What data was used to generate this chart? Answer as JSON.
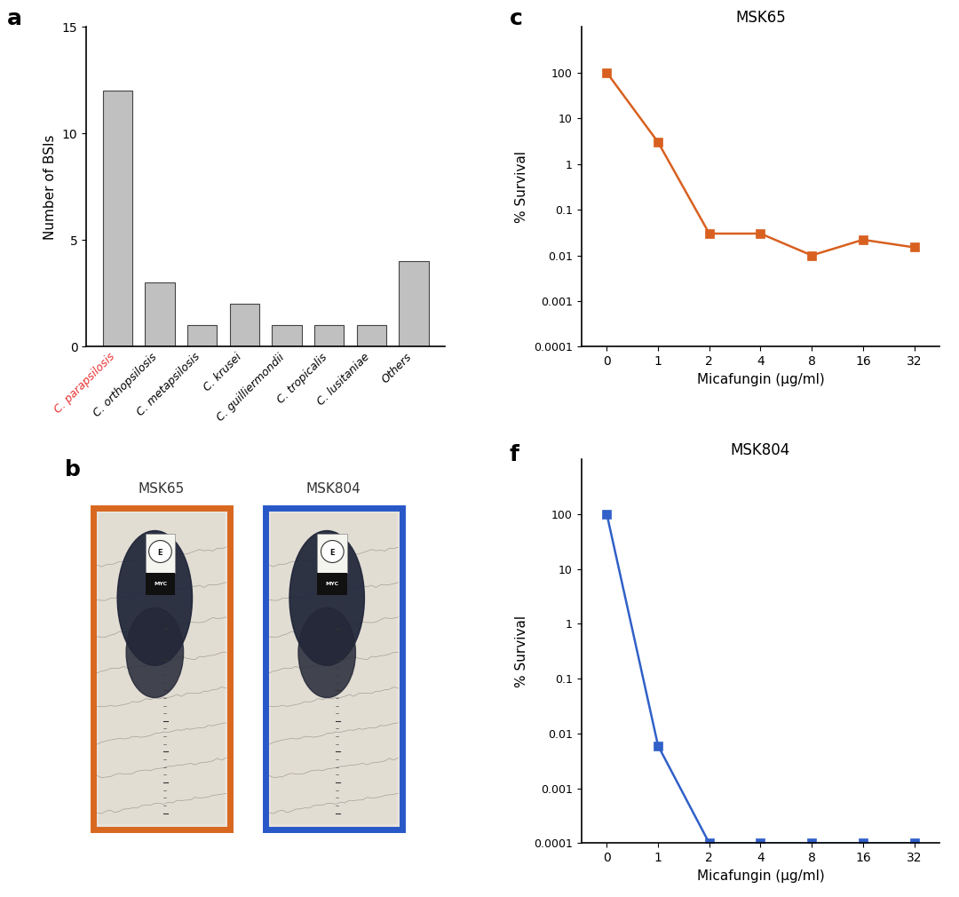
{
  "bar_categories": [
    "C. parapsilosis",
    "C. orthopsilosis",
    "C. metapsilosis",
    "C. krusei",
    "C. guilliermondii",
    "C. tropicalis",
    "C. lusitaniae",
    "Others"
  ],
  "bar_values": [
    12,
    3,
    1,
    2,
    1,
    1,
    1,
    4
  ],
  "bar_color": "#c0c0c0",
  "bar_edge_color": "#444444",
  "bar_first_label_color": "#e83030",
  "bar_ylabel": "Number of BSIs",
  "bar_ylim": [
    0,
    15
  ],
  "bar_yticks": [
    0,
    5,
    10,
    15
  ],
  "msk65_x_pos": [
    0,
    1,
    2,
    3,
    4,
    5,
    6
  ],
  "msk65_x_labels": [
    "0",
    "1",
    "2",
    "4",
    "8",
    "16",
    "32"
  ],
  "msk65_y": [
    100,
    3.0,
    0.03,
    0.03,
    0.01,
    0.022,
    0.015
  ],
  "msk65_color": "#d86020",
  "msk65_title": "MSK65",
  "msk804_x_pos": [
    0,
    1,
    2,
    3,
    4,
    5,
    6
  ],
  "msk804_x_labels": [
    "0",
    "1",
    "2",
    "4",
    "8",
    "16",
    "32"
  ],
  "msk804_y": [
    100,
    0.006,
    0.0001,
    0.0001,
    0.0001,
    0.0001,
    0.0001
  ],
  "msk804_color": "#3060c8",
  "msk804_title": "MSK804",
  "survival_ylabel": "% Survival",
  "survival_xlabel": "Micafungin (μg/ml)",
  "survival_ylim_min": 0.0001,
  "survival_ylim_max": 1000,
  "survival_yticks": [
    0.0001,
    0.001,
    0.01,
    0.1,
    1,
    10,
    100
  ],
  "survival_ytick_labels": [
    "0.0001",
    "0.001",
    "0.01",
    "0.1",
    "1",
    "10",
    "100"
  ],
  "orange_border_color": "#d86820",
  "blue_border_color": "#2858c8",
  "panel_a_label": "a",
  "panel_b_label": "b",
  "panel_c_label": "c",
  "panel_f_label": "f",
  "msk65_label": "MSK65",
  "msk804_label": "MSK804",
  "bg_color": "#ffffff"
}
